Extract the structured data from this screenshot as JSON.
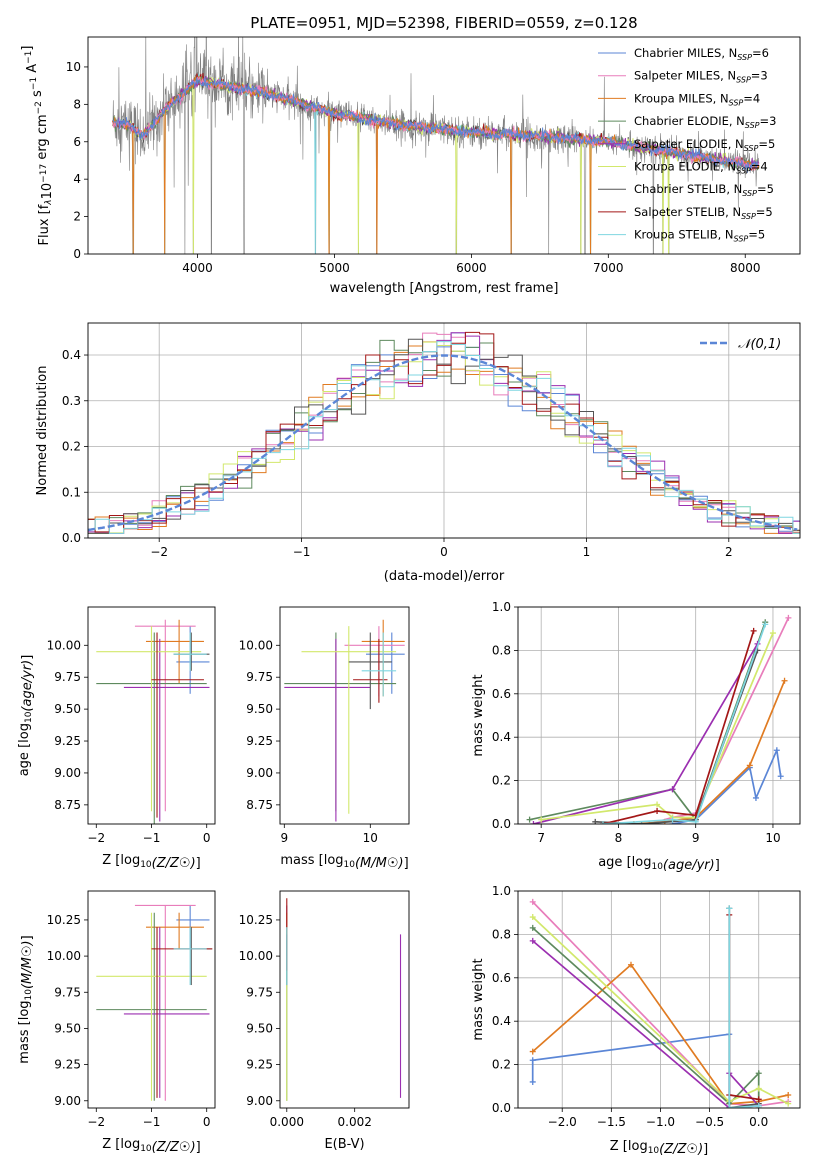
{
  "figure": {
    "title": "PLATE=0951, MJD=52398, FIBERID=0559, z=0.128"
  },
  "colors": {
    "Chabrier MILES": "#5b86d6",
    "Salpeter MILES": "#e87dbb",
    "Kroupa MILES": "#e07b22",
    "Chabrier ELODIE": "#5e8a5e",
    "Salpeter ELODIE": "#9b2fb0",
    "Kroupa ELODIE": "#d2e86c",
    "Chabrier STELIB": "#555555",
    "Salpeter STELIB": "#a31717",
    "Kroupa STELIB": "#7fd6e0",
    "data": "#808080",
    "gaussian": "#5b86d6"
  },
  "chart_data": [
    {
      "id": "spectrum",
      "type": "line",
      "xlabel": "wavelength [Angstrom, rest frame]",
      "ylabel": "Flux [f_λ10^-17 erg cm^-2 s^-1 A^-1]",
      "xlim": [
        3200,
        8400
      ],
      "ylim": [
        0,
        11.6
      ],
      "xticks": [
        4000,
        5000,
        6000,
        7000,
        8000
      ],
      "yticks": [
        0,
        2,
        4,
        6,
        8,
        10
      ],
      "legend_position": "top-right",
      "legend": [
        {
          "label": "Chabrier MILES, N",
          "sub": "SSP",
          "suffix": "=6"
        },
        {
          "label": "Salpeter MILES, N",
          "sub": "SSP",
          "suffix": "=3"
        },
        {
          "label": "Kroupa MILES, N",
          "sub": "SSP",
          "suffix": "=4"
        },
        {
          "label": "Chabrier ELODIE, N",
          "sub": "SSP",
          "suffix": "=3"
        },
        {
          "label": "Salpeter ELODIE, N",
          "sub": "SSP",
          "suffix": "=5"
        },
        {
          "label": "Kroupa ELODIE, N",
          "sub": "SSP",
          "suffix": "=4"
        },
        {
          "label": "Chabrier STELIB, N",
          "sub": "SSP",
          "suffix": "=5"
        },
        {
          "label": "Salpeter STELIB, N",
          "sub": "SSP",
          "suffix": "=5"
        },
        {
          "label": "Kroupa STELIB, N",
          "sub": "SSP",
          "suffix": "=5"
        }
      ],
      "continuum": {
        "x": [
          3380,
          3500,
          3600,
          3800,
          4000,
          4200,
          4500,
          5000,
          5500,
          6000,
          6500,
          7000,
          7500,
          8000,
          8100
        ],
        "y": [
          7.1,
          6.9,
          6.3,
          8.0,
          9.3,
          9.0,
          8.6,
          7.5,
          6.9,
          6.5,
          6.3,
          6.0,
          5.4,
          4.8,
          4.7
        ]
      },
      "model_range": [
        3380,
        8100
      ],
      "data_range": [
        3380,
        8100
      ],
      "drops": [
        3530,
        3760,
        3910,
        3970,
        4100,
        4340,
        4860,
        4960,
        5175,
        5310,
        5890,
        6290,
        6565,
        6800,
        6830,
        6870,
        7330,
        7400,
        7440
      ]
    },
    {
      "id": "residuals",
      "type": "histogram",
      "xlabel": "(data-model)/error",
      "ylabel": "Normed distribution",
      "xlim": [
        -2.5,
        2.5
      ],
      "ylim": [
        0,
        0.47
      ],
      "xticks": [
        -2,
        -1,
        0,
        1,
        2
      ],
      "yticks": [
        0.0,
        0.1,
        0.2,
        0.3,
        0.4
      ],
      "bin_width": 0.1,
      "grid": true,
      "legend_position": "top-right",
      "gaussian_label": "𝒩(0,1)"
    },
    {
      "id": "age_vs_Z",
      "type": "errorbar",
      "xlabel": "Z [log10(Z/Z☉)]",
      "ylabel": "age  [log10(age/yr)]",
      "xlim": [
        -2.15,
        0.15
      ],
      "ylim": [
        8.6,
        10.3
      ],
      "xticks": [
        -2,
        -1,
        0
      ],
      "yticks": [
        8.75,
        9.0,
        9.25,
        9.5,
        9.75,
        10.0
      ],
      "points": [
        {
          "m": "Chabrier MILES",
          "x": -0.3,
          "y": 9.87,
          "xe": [
            -0.55,
            0.05
          ],
          "ye": [
            9.62,
            10.15
          ]
        },
        {
          "m": "Salpeter MILES",
          "x": -0.75,
          "y": 10.15,
          "xe": [
            -1.3,
            -0.2
          ],
          "ye": [
            8.7,
            10.2
          ]
        },
        {
          "m": "Kroupa MILES",
          "x": -0.5,
          "y": 10.03,
          "xe": [
            -1.1,
            -0.05
          ],
          "ye": [
            9.7,
            10.2
          ]
        },
        {
          "m": "Chabrier ELODIE",
          "x": -0.95,
          "y": 9.7,
          "xe": [
            -2.0,
            0.0
          ],
          "ye": [
            8.6,
            10.1
          ]
        },
        {
          "m": "Salpeter ELODIE",
          "x": -0.85,
          "y": 9.67,
          "xe": [
            -1.5,
            0.05
          ],
          "ye": [
            8.62,
            10.05
          ]
        },
        {
          "m": "Kroupa ELODIE",
          "x": -1.0,
          "y": 9.95,
          "xe": [
            -2.0,
            -0.1
          ],
          "ye": [
            8.7,
            10.15
          ]
        },
        {
          "m": "Chabrier STELIB",
          "x": -0.28,
          "y": 9.93,
          "xe": [
            -0.6,
            0.05
          ],
          "ye": [
            9.8,
            10.1
          ]
        },
        {
          "m": "Salpeter STELIB",
          "x": -0.9,
          "y": 9.73,
          "xe": [
            -1.0,
            -0.05
          ],
          "ye": [
            8.65,
            10.1
          ]
        },
        {
          "m": "Kroupa STELIB",
          "x": -0.3,
          "y": 9.93,
          "xe": [
            -0.6,
            0.0
          ],
          "ye": [
            9.8,
            10.1
          ]
        }
      ]
    },
    {
      "id": "age_vs_mass",
      "type": "errorbar",
      "xlabel": "mass [log10(M/M☉)]",
      "ylabel": "",
      "xlim": [
        8.95,
        10.45
      ],
      "ylim": [
        8.6,
        10.3
      ],
      "xticks": [
        9,
        10
      ],
      "yticks": [
        8.75,
        9.0,
        9.25,
        9.5,
        9.75,
        10.0
      ],
      "points": [
        {
          "m": "Chabrier MILES",
          "x": 10.25,
          "y": 9.93,
          "xe": [
            9.95,
            10.4
          ],
          "ye": [
            9.62,
            10.1
          ]
        },
        {
          "m": "Salpeter MILES",
          "x": 10.1,
          "y": 10.0,
          "xe": [
            9.7,
            10.4
          ],
          "ye": [
            9.6,
            10.15
          ]
        },
        {
          "m": "Kroupa MILES",
          "x": 10.15,
          "y": 10.03,
          "xe": [
            9.9,
            10.4
          ],
          "ye": [
            9.6,
            10.2
          ]
        },
        {
          "m": "Chabrier ELODIE",
          "x": 9.6,
          "y": 9.7,
          "xe": [
            9.0,
            10.3
          ],
          "ye": [
            8.7,
            10.1
          ]
        },
        {
          "m": "Salpeter ELODIE",
          "x": 9.6,
          "y": 9.67,
          "xe": [
            9.0,
            10.0
          ],
          "ye": [
            8.62,
            10.05
          ]
        },
        {
          "m": "Kroupa ELODIE",
          "x": 9.75,
          "y": 9.95,
          "xe": [
            9.2,
            10.3
          ],
          "ye": [
            8.68,
            10.15
          ]
        },
        {
          "m": "Chabrier STELIB",
          "x": 10.0,
          "y": 9.87,
          "xe": [
            9.75,
            10.25
          ],
          "ye": [
            9.5,
            10.1
          ]
        },
        {
          "m": "Salpeter STELIB",
          "x": 10.1,
          "y": 9.73,
          "xe": [
            9.8,
            10.2
          ],
          "ye": [
            9.55,
            10.05
          ]
        },
        {
          "m": "Kroupa STELIB",
          "x": 10.15,
          "y": 9.8,
          "xe": [
            9.9,
            10.3
          ],
          "ye": [
            9.6,
            10.1
          ]
        }
      ]
    },
    {
      "id": "mw_vs_age",
      "type": "line",
      "xlabel": "age  [log10(age/yr)]",
      "ylabel": "mass weight",
      "xlim": [
        6.7,
        10.35
      ],
      "ylim": [
        0,
        1.0
      ],
      "xticks": [
        7,
        8,
        9,
        10
      ],
      "yticks": [
        0.0,
        0.2,
        0.4,
        0.6,
        0.8,
        1.0
      ],
      "grid": true,
      "series": [
        {
          "m": "Chabrier MILES",
          "x": [
            8.7,
            9.0,
            9.7,
            9.78,
            10.05,
            10.1
          ],
          "y": [
            0.0,
            0.02,
            0.26,
            0.12,
            0.34,
            0.22
          ]
        },
        {
          "m": "Salpeter MILES",
          "x": [
            8.4,
            8.7,
            9.0,
            10.2
          ],
          "y": [
            0.0,
            0.03,
            0.05,
            0.95
          ]
        },
        {
          "m": "Kroupa MILES",
          "x": [
            8.2,
            8.6,
            9.0,
            9.7,
            10.15
          ],
          "y": [
            0.0,
            0.01,
            0.03,
            0.27,
            0.66
          ]
        },
        {
          "m": "Chabrier ELODIE",
          "x": [
            6.85,
            8.7,
            9.0,
            9.9
          ],
          "y": [
            0.02,
            0.16,
            0.02,
            0.93
          ]
        },
        {
          "m": "Salpeter ELODIE",
          "x": [
            6.9,
            8.7,
            9.8
          ],
          "y": [
            0.0,
            0.16,
            0.83
          ]
        },
        {
          "m": "Kroupa ELODIE",
          "x": [
            7.0,
            8.5,
            8.7,
            9.0,
            10.0
          ],
          "y": [
            0.02,
            0.09,
            0.03,
            0.03,
            0.88
          ]
        },
        {
          "m": "Chabrier STELIB",
          "x": [
            7.7,
            8.3,
            9.0,
            9.8
          ],
          "y": [
            0.01,
            0.0,
            0.02,
            0.8
          ]
        },
        {
          "m": "Salpeter STELIB",
          "x": [
            7.8,
            8.5,
            9.0,
            9.75
          ],
          "y": [
            0.0,
            0.06,
            0.04,
            0.89
          ]
        },
        {
          "m": "Kroupa STELIB",
          "x": [
            7.8,
            8.7,
            9.0,
            9.9
          ],
          "y": [
            0.0,
            0.02,
            0.01,
            0.92
          ]
        }
      ]
    },
    {
      "id": "mass_vs_Z",
      "type": "errorbar",
      "xlabel": "Z [log10(Z/Z☉)]",
      "ylabel": "mass [log10(M/M☉)]",
      "xlim": [
        -2.15,
        0.15
      ],
      "ylim": [
        8.95,
        10.45
      ],
      "xticks": [
        -2,
        -1,
        0
      ],
      "yticks": [
        9.0,
        9.25,
        9.5,
        9.75,
        10.0,
        10.25
      ],
      "points": [
        {
          "m": "Chabrier MILES",
          "x": -0.3,
          "y": 10.25,
          "xe": [
            -0.55,
            0.05
          ],
          "ye": [
            10.05,
            10.35
          ]
        },
        {
          "m": "Salpeter MILES",
          "x": -0.75,
          "y": 10.35,
          "xe": [
            -1.3,
            -0.2
          ],
          "ye": [
            9.0,
            10.35
          ]
        },
        {
          "m": "Kroupa MILES",
          "x": -0.5,
          "y": 10.2,
          "xe": [
            -1.1,
            -0.05
          ],
          "ye": [
            10.05,
            10.3
          ]
        },
        {
          "m": "Chabrier ELODIE",
          "x": -0.95,
          "y": 9.63,
          "xe": [
            -2.0,
            0.0
          ],
          "ye": [
            9.0,
            10.3
          ]
        },
        {
          "m": "Salpeter ELODIE",
          "x": -0.85,
          "y": 9.6,
          "xe": [
            -1.5,
            0.05
          ],
          "ye": [
            9.02,
            10.2
          ]
        },
        {
          "m": "Kroupa ELODIE",
          "x": -1.0,
          "y": 9.86,
          "xe": [
            -2.0,
            0.0
          ],
          "ye": [
            9.0,
            10.3
          ]
        },
        {
          "m": "Chabrier STELIB",
          "x": -0.28,
          "y": 10.05,
          "xe": [
            -0.6,
            0.1
          ],
          "ye": [
            9.8,
            10.2
          ]
        },
        {
          "m": "Salpeter STELIB",
          "x": -0.9,
          "y": 10.05,
          "xe": [
            -1.0,
            0.1
          ],
          "ye": [
            9.02,
            10.2
          ]
        },
        {
          "m": "Kroupa STELIB",
          "x": -0.3,
          "y": 10.05,
          "xe": [
            -0.6,
            0.0
          ],
          "ye": [
            9.8,
            10.2
          ]
        }
      ]
    },
    {
      "id": "mass_vs_EBV",
      "type": "errorbar",
      "xlabel": "E(B-V)",
      "ylabel": "",
      "xlim": [
        -0.0002,
        0.0036
      ],
      "ylim": [
        8.95,
        10.45
      ],
      "xticks": [
        0.0,
        0.002
      ],
      "xtick_labels": [
        "0.000",
        "0.002"
      ],
      "yticks": [
        9.0,
        9.25,
        9.5,
        9.75,
        10.0,
        10.25
      ],
      "points": [
        {
          "m": "Chabrier MILES",
          "x": 0.0,
          "y": 10.2,
          "ye": [
            10.0,
            10.35
          ]
        },
        {
          "m": "Salpeter MILES",
          "x": 0.0,
          "y": 10.3,
          "ye": [
            10.1,
            10.35
          ]
        },
        {
          "m": "Kroupa MILES",
          "x": 0.0,
          "y": 10.2,
          "ye": [
            10.05,
            10.3
          ]
        },
        {
          "m": "Chabrier ELODIE",
          "x": 0.0,
          "y": 9.8,
          "ye": [
            9.0,
            10.2
          ]
        },
        {
          "m": "Salpeter ELODIE",
          "x": 0.00335,
          "y": 9.6,
          "ye": [
            9.02,
            10.15
          ]
        },
        {
          "m": "Kroupa ELODIE",
          "x": 0.0,
          "y": 9.86,
          "ye": [
            9.0,
            10.2
          ]
        },
        {
          "m": "Chabrier STELIB",
          "x": 0.0,
          "y": 10.05,
          "ye": [
            9.8,
            10.15
          ]
        },
        {
          "m": "Salpeter STELIB",
          "x": 0.0,
          "y": 10.05,
          "ye": [
            9.9,
            10.4
          ]
        },
        {
          "m": "Kroupa STELIB",
          "x": 0.0,
          "y": 10.05,
          "ye": [
            9.8,
            10.2
          ]
        }
      ]
    },
    {
      "id": "mw_vs_Z",
      "type": "line",
      "xlabel": "Z [log10(Z/Z☉)]",
      "ylabel": "mass weight",
      "xlim": [
        -2.45,
        0.42
      ],
      "ylim": [
        0,
        1.0
      ],
      "xticks": [
        -2.0,
        -1.5,
        -1.0,
        -0.5,
        0.0
      ],
      "yticks": [
        0.0,
        0.2,
        0.4,
        0.6,
        0.8,
        1.0
      ],
      "grid": true,
      "series": [
        {
          "m": "Chabrier MILES",
          "x": [
            -2.3,
            -2.3,
            -0.3,
            -0.3,
            0.0
          ],
          "y": [
            0.12,
            0.22,
            0.34,
            0.0,
            0.01
          ]
        },
        {
          "m": "Salpeter MILES",
          "x": [
            -2.3,
            -0.3,
            0.0,
            0.3
          ],
          "y": [
            0.95,
            0.02,
            0.01,
            0.03
          ]
        },
        {
          "m": "Kroupa MILES",
          "x": [
            -2.3,
            -1.3,
            -0.3,
            0.0,
            0.3
          ],
          "y": [
            0.26,
            0.66,
            0.02,
            0.03,
            0.06
          ]
        },
        {
          "m": "Chabrier ELODIE",
          "x": [
            -2.3,
            -0.3,
            0.0,
            0.0
          ],
          "y": [
            0.83,
            0.02,
            0.16,
            0.0
          ]
        },
        {
          "m": "Salpeter ELODIE",
          "x": [
            -2.3,
            -0.3,
            -0.3,
            0.0
          ],
          "y": [
            0.77,
            0.0,
            0.16,
            0.01
          ]
        },
        {
          "m": "Kroupa ELODIE",
          "x": [
            -2.3,
            -0.3,
            0.0,
            0.3
          ],
          "y": [
            0.88,
            0.03,
            0.09,
            0.02
          ]
        },
        {
          "m": "Chabrier STELIB",
          "x": [
            -0.3,
            -0.3,
            0.0
          ],
          "y": [
            0.92,
            0.0,
            0.02
          ]
        },
        {
          "m": "Salpeter STELIB",
          "x": [
            -0.3,
            -0.3,
            0.0
          ],
          "y": [
            0.89,
            0.06,
            0.04
          ]
        },
        {
          "m": "Kroupa STELIB",
          "x": [
            -0.3,
            -0.3,
            0.0
          ],
          "y": [
            0.92,
            0.0,
            0.01
          ]
        }
      ]
    }
  ]
}
